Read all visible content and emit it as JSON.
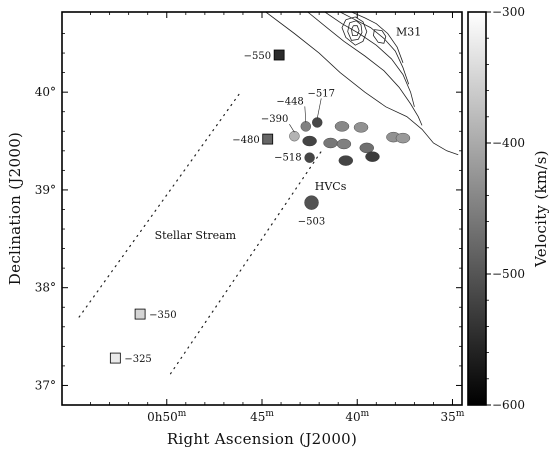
{
  "chart_data": {
    "type": "scatter",
    "title": "",
    "xlabel": "Right Ascension (J2000)",
    "ylabel": "Declination (J2000)",
    "x_unit": "minutes of RA (0h + m)",
    "xlim": [
      55.5,
      34.5
    ],
    "ylim": [
      36.8,
      40.82
    ],
    "x_ticks": [
      {
        "value": 50,
        "label_main": "0h50",
        "label_sup": "m"
      },
      {
        "value": 45,
        "label_main": "45",
        "label_sup": "m"
      },
      {
        "value": 40,
        "label_main": "40",
        "label_sup": "m"
      },
      {
        "value": 35,
        "label_main": "35",
        "label_sup": "m"
      }
    ],
    "y_ticks": [
      {
        "value": 40,
        "label": "40°"
      },
      {
        "value": 39,
        "label": "39°"
      },
      {
        "value": 38,
        "label": "38°"
      },
      {
        "value": 37,
        "label": "37°"
      }
    ],
    "grid": false,
    "colorbar": {
      "label": "Velocity (km/s)",
      "range": [
        -600,
        -300
      ],
      "ticks": [
        -300,
        -400,
        -500,
        -600
      ],
      "colormap": "grayscale: black (-600) to white (-300)"
    },
    "annotations": [
      {
        "text": "M31",
        "x": 37.3,
        "y": 40.58
      },
      {
        "text": "HVCs",
        "x": 41.4,
        "y": 39.0
      },
      {
        "text": "Stellar Stream",
        "x": 48.5,
        "y": 38.5
      }
    ],
    "labeled_clouds": [
      {
        "label": "-550",
        "x": 44.1,
        "y": 40.38,
        "velocity": -550,
        "marker": "square"
      },
      {
        "label": "-480",
        "x": 44.7,
        "y": 39.52,
        "velocity": -480,
        "marker": "square"
      },
      {
        "label": "-350",
        "x": 51.4,
        "y": 37.73,
        "velocity": -350,
        "marker": "square"
      },
      {
        "label": "-325",
        "x": 52.7,
        "y": 37.28,
        "velocity": -325,
        "marker": "square"
      },
      {
        "label": "-448",
        "x": 42.7,
        "y": 39.65,
        "velocity": -448,
        "marker": "blob"
      },
      {
        "label": "-517",
        "x": 42.1,
        "y": 39.69,
        "velocity": -517,
        "marker": "blob"
      },
      {
        "label": "-390",
        "x": 43.3,
        "y": 39.55,
        "velocity": -390,
        "marker": "blob"
      },
      {
        "label": "-518",
        "x": 42.5,
        "y": 39.33,
        "velocity": -518,
        "marker": "blob"
      },
      {
        "label": "-503",
        "x": 42.4,
        "y": 38.87,
        "velocity": -503,
        "marker": "blob"
      }
    ],
    "unlabeled_clouds": [
      {
        "x": 42.5,
        "y": 39.5,
        "velocity": -520
      },
      {
        "x": 41.4,
        "y": 39.48,
        "velocity": -460
      },
      {
        "x": 40.7,
        "y": 39.47,
        "velocity": -450
      },
      {
        "x": 40.8,
        "y": 39.65,
        "velocity": -440
      },
      {
        "x": 39.8,
        "y": 39.64,
        "velocity": -430
      },
      {
        "x": 40.6,
        "y": 39.3,
        "velocity": -520
      },
      {
        "x": 39.5,
        "y": 39.43,
        "velocity": -470
      },
      {
        "x": 39.2,
        "y": 39.34,
        "velocity": -530
      },
      {
        "x": 38.1,
        "y": 39.54,
        "velocity": -430
      },
      {
        "x": 37.6,
        "y": 39.53,
        "velocity": -420
      }
    ],
    "stream_lines": [
      {
        "x": [
          54.6,
          46.2
        ],
        "y": [
          37.7,
          39.98
        ]
      },
      {
        "x": [
          49.8,
          41.8
        ],
        "y": [
          37.12,
          39.42
        ]
      }
    ],
    "m31_contours": [
      {
        "x": [
          44.8,
          43.3,
          42.0,
          40.9,
          39.6,
          38.5,
          37.4,
          36.6,
          36.0,
          35.3,
          34.7
        ],
        "y": [
          40.82,
          40.6,
          40.4,
          40.2,
          40.0,
          39.85,
          39.75,
          39.62,
          39.48,
          39.4,
          39.36
        ]
      },
      {
        "x": [
          42.6,
          41.6,
          40.7,
          39.6,
          38.6,
          37.8,
          37.2,
          36.8,
          36.6
        ],
        "y": [
          40.82,
          40.66,
          40.52,
          40.37,
          40.22,
          40.05,
          39.88,
          39.75,
          39.66
        ]
      },
      {
        "x": [
          41.7,
          40.8,
          39.9,
          39.0,
          38.2,
          37.6,
          37.2,
          37.0
        ],
        "y": [
          40.82,
          40.7,
          40.6,
          40.48,
          40.34,
          40.18,
          40.0,
          39.85
        ]
      },
      {
        "x": [
          40.9,
          40.1,
          39.3,
          38.6,
          38.0,
          37.6,
          37.3
        ],
        "y": [
          40.82,
          40.74,
          40.66,
          40.55,
          40.42,
          40.25,
          40.08
        ]
      },
      {
        "x": [
          40.3,
          39.6,
          39.0,
          38.4,
          37.9,
          37.6
        ],
        "y": [
          40.82,
          40.76,
          40.7,
          40.6,
          40.46,
          40.3
        ]
      },
      {
        "x": [
          40.6,
          40.1,
          39.7,
          39.5,
          39.7,
          40.1,
          40.6,
          40.8,
          40.6
        ],
        "y": [
          40.74,
          40.77,
          40.72,
          40.62,
          40.52,
          40.48,
          40.56,
          40.66,
          40.74
        ]
      },
      {
        "x": [
          40.4,
          40.05,
          39.8,
          39.75,
          39.95,
          40.3,
          40.5,
          40.4
        ],
        "y": [
          40.71,
          40.73,
          40.69,
          40.61,
          40.54,
          40.53,
          40.62,
          40.71
        ]
      },
      {
        "x": [
          40.2,
          40.0,
          39.9,
          40.0,
          40.25,
          40.3,
          40.2
        ],
        "y": [
          40.68,
          40.68,
          40.63,
          40.58,
          40.58,
          40.64,
          40.68
        ]
      },
      {
        "x": [
          39.1,
          38.7,
          38.5,
          38.6,
          38.9,
          39.15,
          39.1
        ],
        "y": [
          40.64,
          40.63,
          40.57,
          40.5,
          40.51,
          40.58,
          40.64
        ]
      }
    ]
  }
}
